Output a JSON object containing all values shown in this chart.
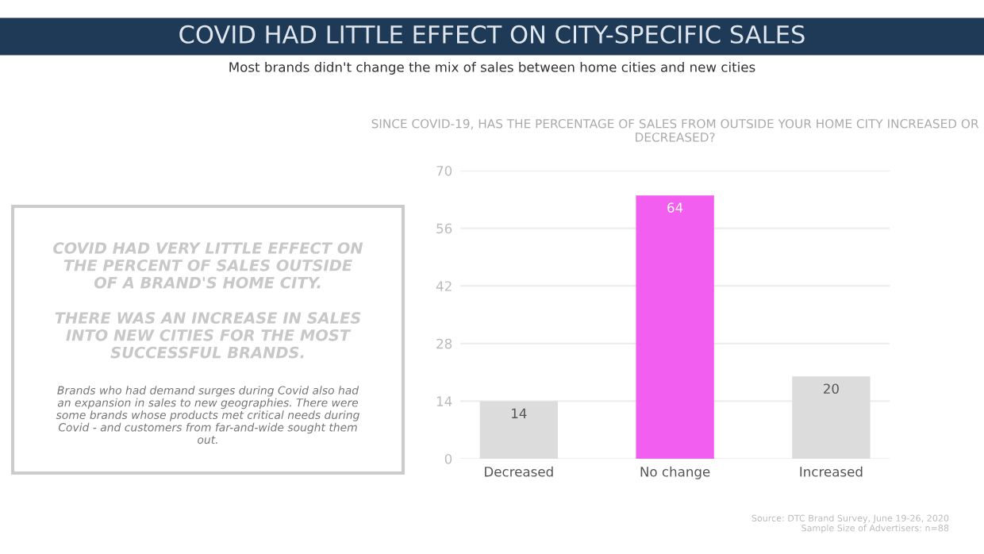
{
  "chart_data": {
    "type": "bar",
    "title": "COVID HAD LITTLE EFFECT ON CITY-SPECIFIC SALES",
    "subtitle": "Most brands didn't change the mix of sales between home cities and new cities",
    "xlabel": "SINCE COVID-19, HAS THE PERCENTAGE OF SALES FROM OUTSIDE YOUR HOME CITY INCREASED OR DECREASED?",
    "categories": [
      "Decreased",
      "No change",
      "Increased"
    ],
    "values": [
      14,
      64,
      20
    ],
    "colors": [
      "#dcdcdc",
      "#f25ef0",
      "#dcdcdc"
    ],
    "data_labels": true,
    "ylim": [
      0,
      70
    ],
    "yticks": [
      0,
      14,
      28,
      42,
      56,
      70
    ],
    "grid": "y",
    "annotations": [
      "COVID HAD VERY LITTLE EFFECT ON THE PERCENT OF SALES OUTSIDE OF A BRAND'S HOME CITY.",
      "THERE WAS AN INCREASE IN SALES INTO NEW CITIES FOR THE MOST SUCCESSFUL BRANDS.",
      "Brands who had demand surges during Covid also had an expansion in sales to new geographies. There were some brands whose products met critical needs during Covid - and customers from far-and-wide sought them out.",
      "Source: DTC Brand Survey, June 19-26, 2020\nSample Size of Advertisers: n=88"
    ]
  }
}
